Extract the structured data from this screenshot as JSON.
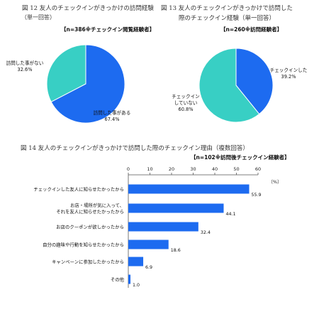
{
  "chart_data": [
    {
      "type": "pie",
      "title": "図 12 友人のチェックインがきっかけの訪問経験",
      "subtitle": "（単一回答）",
      "note": "【n=386※チェックイン閲覧経験者】",
      "slices": [
        {
          "label": "訪問した事がある",
          "value": 67.4,
          "color": "#1d6bf0"
        },
        {
          "label": "訪問した事がない",
          "value": 32.6,
          "color": "#38cfc4"
        }
      ]
    },
    {
      "type": "pie",
      "title": "図 13 友人のチェックインがきっかけで訪問した",
      "title_line2": "際のチェックイン経験（単一回答）",
      "note": "【n=260※訪問経験者】",
      "slices": [
        {
          "label": "チェックインした",
          "value": 39.2,
          "color": "#1d6bf0"
        },
        {
          "label": "チェックイン\nしていない",
          "value": 60.8,
          "color": "#38cfc4"
        }
      ]
    },
    {
      "type": "bar",
      "orientation": "horizontal",
      "title": "図 14 友人のチェックインがきっかけで訪問した際のチェックイン理由（複数回答）",
      "note": "【n=102※訪問後チェックイン経験者】",
      "unit": "（%）",
      "xlim": [
        0,
        60
      ],
      "ticks": [
        0,
        10,
        20,
        30,
        40,
        50,
        60
      ],
      "bar_color": "#1d6bf0",
      "categories": [
        "チェックインした友人に知らせたかったから",
        "お店・場所が気に入って、\nそれを友人に知らせたかったから",
        "お店のクーポンが欲しかったから",
        "自分の趣味や行動を知らせたかったから",
        "キャンペーンに参加したかったから",
        "その他"
      ],
      "values": [
        55.9,
        44.1,
        32.4,
        18.6,
        6.9,
        1.0
      ]
    }
  ]
}
